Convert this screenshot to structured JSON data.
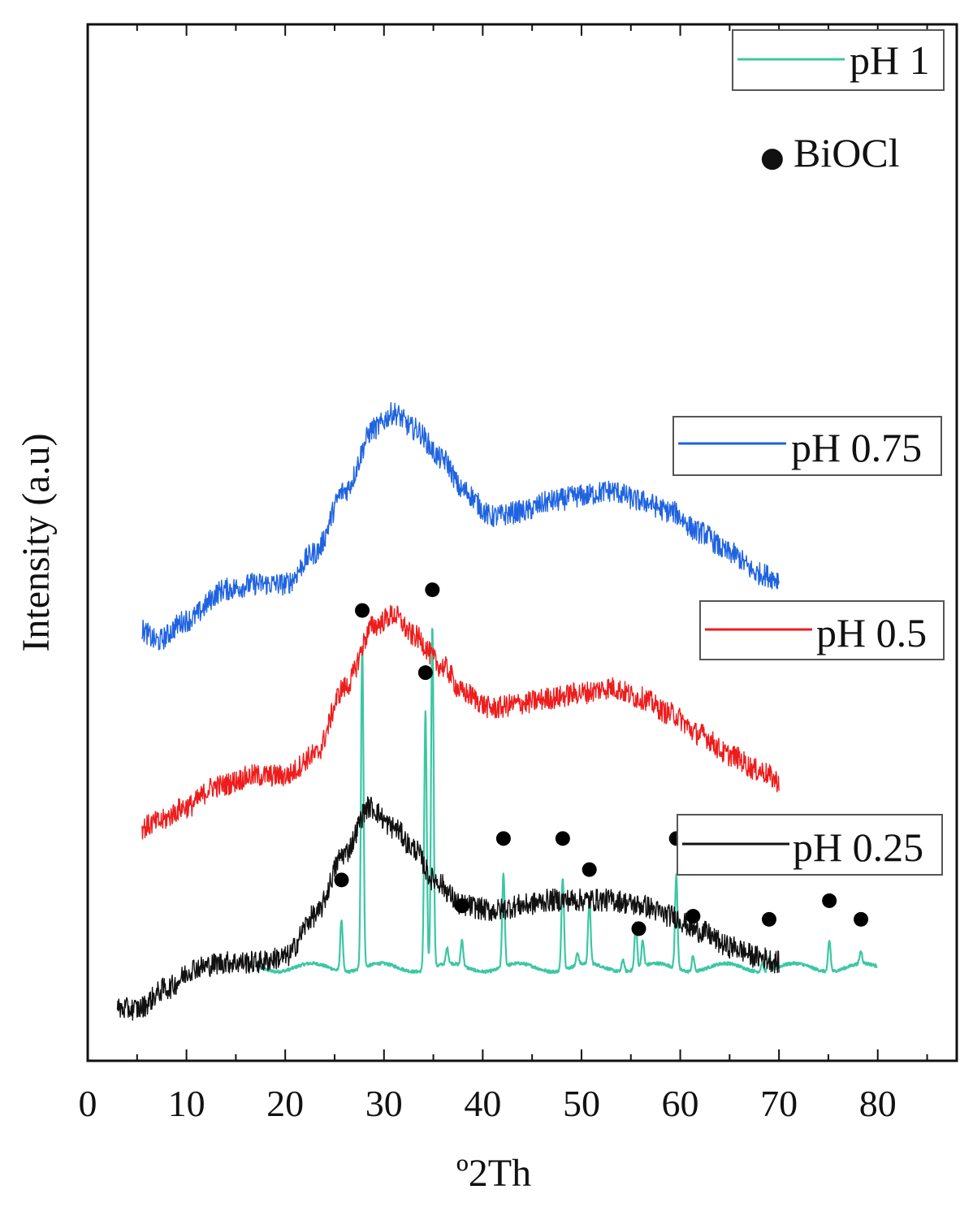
{
  "chart_data": {
    "type": "line",
    "title": "",
    "xlabel": "º2Th",
    "ylabel": "Intensity (a.u)",
    "xlim": [
      0,
      88
    ],
    "xticks": [
      0,
      10,
      20,
      30,
      40,
      50,
      60,
      70,
      80
    ],
    "yticks": [],
    "grid": false,
    "stacked_offset": true,
    "series": [
      {
        "name": "pH 1",
        "color": "#3cc7a3",
        "x_range": [
          17,
          80
        ],
        "baseline": 0.09,
        "peaks": [
          {
            "x": 25.7,
            "h": 0.05
          },
          {
            "x": 27.8,
            "h": 0.31
          },
          {
            "x": 34.2,
            "h": 0.25
          },
          {
            "x": 34.9,
            "h": 0.33
          },
          {
            "x": 36.4,
            "h": 0.015
          },
          {
            "x": 37.9,
            "h": 0.025
          },
          {
            "x": 42.1,
            "h": 0.09
          },
          {
            "x": 48.1,
            "h": 0.09
          },
          {
            "x": 49.6,
            "h": 0.012
          },
          {
            "x": 50.8,
            "h": 0.06
          },
          {
            "x": 54.2,
            "h": 0.012
          },
          {
            "x": 55.5,
            "h": 0.045
          },
          {
            "x": 56.2,
            "h": 0.025
          },
          {
            "x": 59.6,
            "h": 0.09
          },
          {
            "x": 61.3,
            "h": 0.015
          },
          {
            "x": 68.3,
            "h": 0.008
          },
          {
            "x": 69.0,
            "h": 0.012
          },
          {
            "x": 75.1,
            "h": 0.03
          },
          {
            "x": 78.3,
            "h": 0.012
          }
        ]
      },
      {
        "name": "pH 0.75",
        "color": "#1f63e0",
        "x_range": [
          5.5,
          70
        ],
        "key_points": [
          [
            5.5,
            0.415
          ],
          [
            7,
            0.405
          ],
          [
            10,
            0.425
          ],
          [
            14,
            0.455
          ],
          [
            17,
            0.46
          ],
          [
            20,
            0.46
          ],
          [
            23,
            0.49
          ],
          [
            26,
            0.55
          ],
          [
            29,
            0.61
          ],
          [
            31,
            0.625
          ],
          [
            33,
            0.61
          ],
          [
            36,
            0.58
          ],
          [
            38,
            0.55
          ],
          [
            41,
            0.525
          ],
          [
            44,
            0.53
          ],
          [
            47,
            0.54
          ],
          [
            50,
            0.545
          ],
          [
            53,
            0.55
          ],
          [
            56,
            0.54
          ],
          [
            59,
            0.53
          ],
          [
            62,
            0.51
          ],
          [
            65,
            0.49
          ],
          [
            68,
            0.47
          ],
          [
            70,
            0.465
          ]
        ]
      },
      {
        "name": "pH 0.5",
        "color": "#ee1c1c",
        "x_range": [
          5.5,
          70
        ],
        "key_points": [
          [
            5.5,
            0.225
          ],
          [
            7,
            0.23
          ],
          [
            10,
            0.245
          ],
          [
            13,
            0.265
          ],
          [
            17,
            0.275
          ],
          [
            20,
            0.275
          ],
          [
            23,
            0.295
          ],
          [
            26,
            0.36
          ],
          [
            29,
            0.42
          ],
          [
            31,
            0.43
          ],
          [
            33,
            0.41
          ],
          [
            36,
            0.38
          ],
          [
            38,
            0.355
          ],
          [
            41,
            0.34
          ],
          [
            44,
            0.345
          ],
          [
            47,
            0.35
          ],
          [
            50,
            0.355
          ],
          [
            53,
            0.36
          ],
          [
            56,
            0.35
          ],
          [
            59,
            0.335
          ],
          [
            62,
            0.315
          ],
          [
            65,
            0.295
          ],
          [
            68,
            0.28
          ],
          [
            70,
            0.27
          ]
        ]
      },
      {
        "name": "pH 0.25",
        "color": "#111111",
        "x_range": [
          3,
          70
        ],
        "key_points": [
          [
            3,
            0.05
          ],
          [
            5,
            0.05
          ],
          [
            8,
            0.07
          ],
          [
            11,
            0.09
          ],
          [
            14,
            0.095
          ],
          [
            17,
            0.095
          ],
          [
            20,
            0.1
          ],
          [
            23,
            0.14
          ],
          [
            26,
            0.2
          ],
          [
            28.5,
            0.245
          ],
          [
            31,
            0.225
          ],
          [
            33,
            0.205
          ],
          [
            35,
            0.175
          ],
          [
            38,
            0.15
          ],
          [
            41,
            0.145
          ],
          [
            44,
            0.15
          ],
          [
            47,
            0.155
          ],
          [
            50,
            0.155
          ],
          [
            53,
            0.155
          ],
          [
            56,
            0.15
          ],
          [
            59,
            0.14
          ],
          [
            62,
            0.125
          ],
          [
            65,
            0.11
          ],
          [
            68,
            0.1
          ],
          [
            70,
            0.095
          ]
        ]
      }
    ],
    "markers": {
      "label": "BiOCl",
      "symbol": "●",
      "positions": [
        25.7,
        27.8,
        34.2,
        34.9,
        37.9,
        42.1,
        48.1,
        50.8,
        55.8,
        59.6,
        61.3,
        69.0,
        75.1,
        78.3
      ]
    },
    "legends": [
      {
        "label": "pH 1",
        "color": "#3cc7a3"
      },
      {
        "label": "pH 0.75",
        "color": "#1f63e0"
      },
      {
        "label": "pH 0.5",
        "color": "#ee1c1c"
      },
      {
        "label": "pH 0.25",
        "color": "#111111"
      }
    ]
  }
}
